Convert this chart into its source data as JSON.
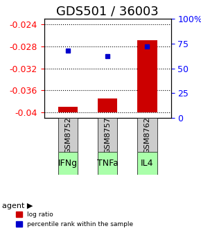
{
  "title": "GDS501 / 36003",
  "categories": [
    "GSM8752",
    "GSM8757",
    "GSM8762"
  ],
  "agents": [
    "IFNg",
    "TNFa",
    "IL4"
  ],
  "log_ratios": [
    -0.039,
    -0.0375,
    -0.0269
  ],
  "percentile_ranks": [
    68,
    62,
    72
  ],
  "ylim_left": [
    -0.041,
    -0.023
  ],
  "yticks_left": [
    -0.04,
    -0.036,
    -0.032,
    -0.028,
    -0.024
  ],
  "yticks_right": [
    0,
    25,
    50,
    75,
    100
  ],
  "bar_color": "#cc0000",
  "dot_color": "#0000cc",
  "agent_bg_color": "#aaffaa",
  "gsm_bg_color": "#cccccc",
  "baseline": -0.04,
  "title_fontsize": 13,
  "tick_fontsize": 9,
  "legend_fontsize": 8,
  "agent_fontsize": 9,
  "gsm_fontsize": 8
}
